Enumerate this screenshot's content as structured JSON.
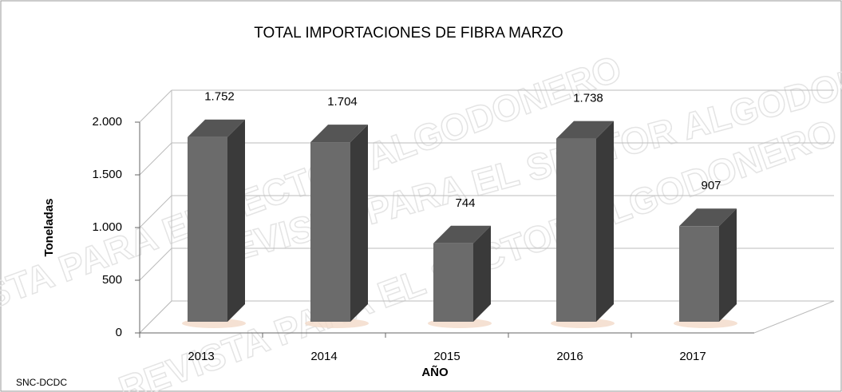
{
  "chart_data": {
    "type": "bar3d",
    "title": "TOTAL IMPORTACIONES DE FIBRA MARZO",
    "x_label": "AÑO",
    "y_label": "Toneladas",
    "source": "SNC-DCDC",
    "watermark": "REVISTA PARA EL SECTOR ALGODONERO",
    "categories": [
      "2013",
      "2014",
      "2015",
      "2016",
      "2017"
    ],
    "values": [
      1752,
      1704,
      744,
      1738,
      907
    ],
    "value_labels": [
      "1.752",
      "1.704",
      "744",
      "1.738",
      "907"
    ],
    "color": "#6b6b6b",
    "ylim": [
      0,
      2000
    ],
    "yticks": [
      0,
      500,
      {
        "value": 1000,
        "label": "1.000"
      },
      {
        "value": 1500,
        "label": "1.500"
      },
      {
        "value": 2000,
        "label": "2.000"
      }
    ],
    "grid": true
  }
}
